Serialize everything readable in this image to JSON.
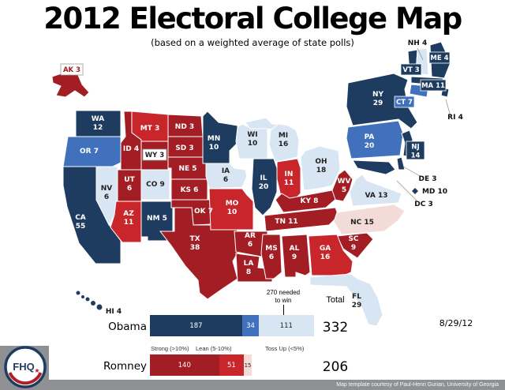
{
  "title": "2012 Electoral College Map",
  "subtitle": "(based on a weighted average of state polls)",
  "date": "8/29/12",
  "credit": "Map template courtesy of Paul-Henri Gurian, University of Georgia",
  "logo": {
    "text": "FHQ",
    "star": "★"
  },
  "colors": {
    "strong_dem": "#1e3c5f",
    "lean_dem": "#4170bd",
    "tossup_dem": "#d8e5f2",
    "tossup_rep": "#f3dbd7",
    "lean_rep": "#c9262c",
    "strong_rep": "#a21e24"
  },
  "chart_data": {
    "type": "bar",
    "categories_legend": [
      "Strong (>10%)",
      "Lean (5-10%)",
      "Toss Up (<5%)"
    ],
    "threshold": {
      "value": 270,
      "label_line1": "270 needed",
      "label_line2": "to win"
    },
    "total_label": "Total",
    "series": [
      {
        "name": "Obama",
        "total": 332,
        "segments": [
          {
            "category": "Strong",
            "value": 187
          },
          {
            "category": "Lean",
            "value": 34
          },
          {
            "category": "Toss Up",
            "value": 111
          }
        ]
      },
      {
        "name": "Romney",
        "total": 206,
        "segments": [
          {
            "category": "Strong",
            "value": 140
          },
          {
            "category": "Lean",
            "value": 51
          },
          {
            "category": "Toss Up",
            "value": 15
          }
        ]
      }
    ]
  },
  "map": {
    "states": [
      {
        "abbr": "WA",
        "ev": 12,
        "rating": "strong_dem"
      },
      {
        "abbr": "OR",
        "ev": 7,
        "rating": "lean_dem"
      },
      {
        "abbr": "CA",
        "ev": 55,
        "rating": "strong_dem"
      },
      {
        "abbr": "NV",
        "ev": 6,
        "rating": "tossup_dem"
      },
      {
        "abbr": "ID",
        "ev": 4,
        "rating": "strong_rep"
      },
      {
        "abbr": "MT",
        "ev": 3,
        "rating": "lean_rep"
      },
      {
        "abbr": "WY",
        "ev": 3,
        "rating": "strong_rep"
      },
      {
        "abbr": "UT",
        "ev": 6,
        "rating": "strong_rep"
      },
      {
        "abbr": "CO",
        "ev": 9,
        "rating": "tossup_dem"
      },
      {
        "abbr": "AZ",
        "ev": 11,
        "rating": "lean_rep"
      },
      {
        "abbr": "NM",
        "ev": 5,
        "rating": "strong_dem"
      },
      {
        "abbr": "ND",
        "ev": 3,
        "rating": "strong_rep"
      },
      {
        "abbr": "SD",
        "ev": 3,
        "rating": "strong_rep"
      },
      {
        "abbr": "NE",
        "ev": 5,
        "rating": "strong_rep"
      },
      {
        "abbr": "KS",
        "ev": 6,
        "rating": "strong_rep"
      },
      {
        "abbr": "OK",
        "ev": 7,
        "rating": "strong_rep"
      },
      {
        "abbr": "TX",
        "ev": 38,
        "rating": "strong_rep"
      },
      {
        "abbr": "MN",
        "ev": 10,
        "rating": "strong_dem"
      },
      {
        "abbr": "IA",
        "ev": 6,
        "rating": "tossup_dem"
      },
      {
        "abbr": "MO",
        "ev": 10,
        "rating": "lean_rep"
      },
      {
        "abbr": "AR",
        "ev": 6,
        "rating": "strong_rep"
      },
      {
        "abbr": "LA",
        "ev": 8,
        "rating": "strong_rep"
      },
      {
        "abbr": "WI",
        "ev": 10,
        "rating": "tossup_dem"
      },
      {
        "abbr": "IL",
        "ev": 20,
        "rating": "strong_dem"
      },
      {
        "abbr": "MI",
        "ev": 16,
        "rating": "tossup_dem"
      },
      {
        "abbr": "IN",
        "ev": 11,
        "rating": "lean_rep"
      },
      {
        "abbr": "OH",
        "ev": 18,
        "rating": "tossup_dem"
      },
      {
        "abbr": "KY",
        "ev": 8,
        "rating": "strong_rep"
      },
      {
        "abbr": "TN",
        "ev": 11,
        "rating": "strong_rep"
      },
      {
        "abbr": "WV",
        "ev": 5,
        "rating": "strong_rep"
      },
      {
        "abbr": "VA",
        "ev": 13,
        "rating": "tossup_dem"
      },
      {
        "abbr": "NC",
        "ev": 15,
        "rating": "tossup_rep"
      },
      {
        "abbr": "SC",
        "ev": 9,
        "rating": "strong_rep"
      },
      {
        "abbr": "GA",
        "ev": 16,
        "rating": "lean_rep"
      },
      {
        "abbr": "AL",
        "ev": 9,
        "rating": "strong_rep"
      },
      {
        "abbr": "MS",
        "ev": 6,
        "rating": "strong_rep"
      },
      {
        "abbr": "FL",
        "ev": 29,
        "rating": "tossup_dem"
      },
      {
        "abbr": "NY",
        "ev": 29,
        "rating": "strong_dem"
      },
      {
        "abbr": "PA",
        "ev": 20,
        "rating": "lean_dem"
      },
      {
        "abbr": "NJ",
        "ev": 14,
        "rating": "strong_dem"
      },
      {
        "abbr": "DE",
        "ev": 3,
        "rating": "strong_dem"
      },
      {
        "abbr": "MD",
        "ev": 10,
        "rating": "strong_dem"
      },
      {
        "abbr": "DC",
        "ev": 3,
        "rating": "strong_dem"
      },
      {
        "abbr": "VT",
        "ev": 3,
        "rating": "strong_dem"
      },
      {
        "abbr": "NH",
        "ev": 4,
        "rating": "tossup_dem"
      },
      {
        "abbr": "ME",
        "ev": 4,
        "rating": "strong_dem"
      },
      {
        "abbr": "MA",
        "ev": 11,
        "rating": "strong_dem"
      },
      {
        "abbr": "CT",
        "ev": 7,
        "rating": "lean_dem"
      },
      {
        "abbr": "RI",
        "ev": 4,
        "rating": "strong_dem"
      },
      {
        "abbr": "AK",
        "ev": 3,
        "rating": "strong_rep"
      },
      {
        "abbr": "HI",
        "ev": 4,
        "rating": "strong_dem"
      }
    ]
  }
}
